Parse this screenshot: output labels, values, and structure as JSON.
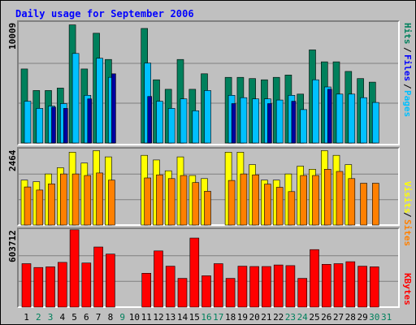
{
  "colors": {
    "hits": "#00805c",
    "files": "#00c0ff",
    "pages": "#00c0ff",
    "visits": "#ffff00",
    "sites": "#ff8000",
    "kbytes": "#ff0000",
    "weekend_label": "#00805c",
    "weekday_label": "#000000",
    "title": "#0000ff"
  },
  "chart_data": [
    {
      "type": "bar",
      "title": "Daily usage for September 2006",
      "categories": [
        "1",
        "2",
        "3",
        "4",
        "5",
        "6",
        "7",
        "8",
        "9",
        "10",
        "11",
        "12",
        "13",
        "14",
        "15",
        "16",
        "17",
        "18",
        "19",
        "20",
        "21",
        "22",
        "23",
        "24",
        "25",
        "26",
        "27",
        "28",
        "29",
        "30",
        "31"
      ],
      "weekend_days": [
        "2",
        "3",
        "9",
        "16",
        "17",
        "23",
        "24",
        "30",
        "31"
      ],
      "ymax_label": "10009",
      "ylim": [
        0,
        10009
      ],
      "series": [
        {
          "name": "Hits",
          "values": [
            6200,
            4400,
            4400,
            4600,
            9900,
            6200,
            9200,
            7000,
            0,
            0,
            9600,
            5300,
            4500,
            7000,
            4500,
            5800,
            0,
            5500,
            5500,
            5400,
            5300,
            5500,
            5700,
            4100,
            7800,
            6800,
            6800,
            6000,
            5400,
            5100,
            0
          ]
        },
        {
          "name": "Files",
          "values": [
            3500,
            2900,
            3100,
            3300,
            7500,
            4000,
            7100,
            5500,
            0,
            0,
            6700,
            3500,
            2900,
            3700,
            2700,
            4400,
            0,
            4000,
            3800,
            3700,
            3700,
            3600,
            4000,
            2800,
            5300,
            4700,
            4100,
            4100,
            3800,
            3400,
            0
          ]
        },
        {
          "name": "Pages",
          "values": [
            0,
            0,
            3000,
            2900,
            0,
            3700,
            0,
            5800,
            0,
            0,
            3900,
            0,
            0,
            0,
            0,
            0,
            0,
            3300,
            0,
            0,
            3300,
            0,
            3500,
            0,
            0,
            4500,
            0,
            0,
            0,
            0,
            0
          ]
        }
      ],
      "legend": [
        "Pages",
        "Files",
        "Hits"
      ]
    },
    {
      "type": "bar",
      "ymax_label": "2464",
      "ylim": [
        0,
        2464
      ],
      "series": [
        {
          "name": "Visits",
          "values": [
            1450,
            1400,
            1650,
            1850,
            2350,
            2000,
            2400,
            2200,
            0,
            0,
            2250,
            2100,
            1750,
            2200,
            1600,
            1500,
            0,
            2350,
            2350,
            1950,
            1450,
            1450,
            1650,
            1900,
            1800,
            2400,
            2250,
            1950,
            0,
            0,
            0
          ]
        },
        {
          "name": "Sites",
          "values": [
            1230,
            1130,
            1330,
            1650,
            1650,
            1600,
            1680,
            1450,
            0,
            0,
            1520,
            1620,
            1500,
            1600,
            1370,
            1090,
            0,
            1440,
            1650,
            1620,
            1320,
            1220,
            1080,
            1600,
            1600,
            1800,
            1730,
            1500,
            1350,
            1350,
            0
          ]
        }
      ],
      "legend": [
        "Sites",
        "Visits"
      ]
    },
    {
      "type": "bar",
      "ymax_label": "603712",
      "ylim": [
        0,
        603712
      ],
      "series": [
        {
          "name": "KBytes",
          "values": [
            340000,
            310000,
            315000,
            350000,
            605000,
            345000,
            470000,
            415000,
            0,
            0,
            265000,
            440000,
            320000,
            225000,
            540000,
            245000,
            340000,
            225000,
            320000,
            318000,
            318000,
            330000,
            325000,
            225000,
            450000,
            335000,
            340000,
            355000,
            320000,
            315000,
            0
          ]
        }
      ],
      "legend": [
        "KBytes"
      ]
    }
  ],
  "labels": {
    "title": "Daily usage for September 2006",
    "top_ymax": "10009",
    "mid_ymax": "2464",
    "bot_ymax": "603712",
    "legend_pages": "Pages",
    "legend_files": "Files",
    "legend_hits": "Hits",
    "legend_sites": "Sites",
    "legend_visits": "Visits",
    "legend_kbytes": "KBytes",
    "sep": "/"
  }
}
